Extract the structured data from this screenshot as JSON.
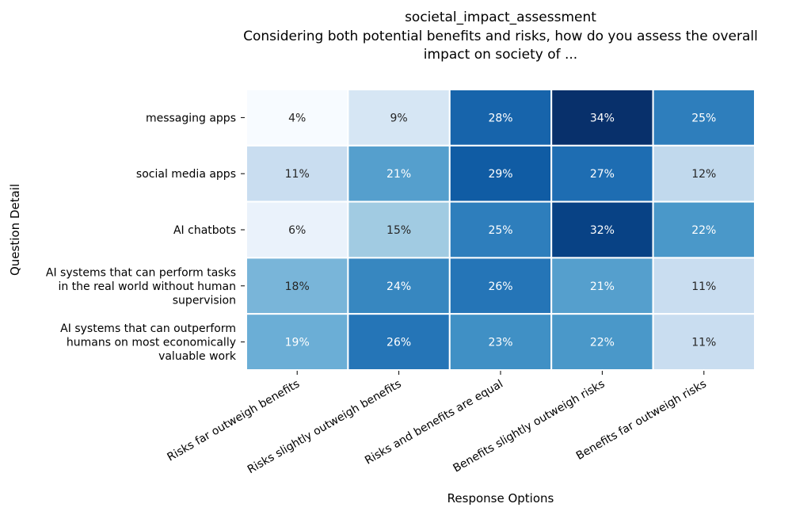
{
  "chart_data": {
    "type": "heatmap",
    "title_lines": [
      "societal_impact_assessment",
      "Considering both potential benefits and risks, how do you assess the overall",
      "impact on society of ..."
    ],
    "xlabel": "Response Options",
    "ylabel": "Question Detail",
    "x_categories": [
      "Risks far outweigh benefits",
      "Risks slightly outweigh benefits",
      "Risks and benefits are equal",
      "Benefits slightly outweigh risks",
      "Benefits far outweigh risks"
    ],
    "y_categories": [
      [
        "messaging apps"
      ],
      [
        "social media apps"
      ],
      [
        "AI chatbots"
      ],
      [
        "AI systems that can perform tasks",
        "in the real world without human",
        "supervision"
      ],
      [
        "AI systems that can outperform",
        "humans on most economically",
        "valuable work"
      ]
    ],
    "values": [
      [
        4,
        9,
        28,
        34,
        25
      ],
      [
        11,
        21,
        29,
        27,
        12
      ],
      [
        6,
        15,
        25,
        32,
        22
      ],
      [
        18,
        24,
        26,
        21,
        11
      ],
      [
        19,
        26,
        23,
        22,
        11
      ]
    ],
    "value_format": "percent",
    "colormap": "Blues",
    "color_range": [
      4,
      34
    ]
  }
}
